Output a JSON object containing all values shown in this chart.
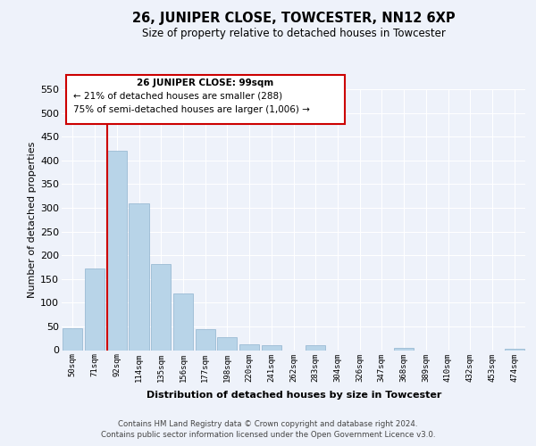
{
  "title": "26, JUNIPER CLOSE, TOWCESTER, NN12 6XP",
  "subtitle": "Size of property relative to detached houses in Towcester",
  "xlabel": "Distribution of detached houses by size in Towcester",
  "ylabel": "Number of detached properties",
  "categories": [
    "50sqm",
    "71sqm",
    "92sqm",
    "114sqm",
    "135sqm",
    "156sqm",
    "177sqm",
    "198sqm",
    "220sqm",
    "241sqm",
    "262sqm",
    "283sqm",
    "304sqm",
    "326sqm",
    "347sqm",
    "368sqm",
    "389sqm",
    "410sqm",
    "432sqm",
    "453sqm",
    "474sqm"
  ],
  "values": [
    47,
    172,
    420,
    310,
    182,
    120,
    45,
    27,
    13,
    10,
    0,
    11,
    0,
    0,
    0,
    4,
    0,
    0,
    0,
    0,
    3
  ],
  "bar_color": "#b8d4e8",
  "bar_edge_color": "#9bbbd4",
  "vline_x": 2,
  "vline_color": "#cc0000",
  "ylim": [
    0,
    550
  ],
  "yticks": [
    0,
    50,
    100,
    150,
    200,
    250,
    300,
    350,
    400,
    450,
    500,
    550
  ],
  "annotation_title": "26 JUNIPER CLOSE: 99sqm",
  "annotation_line1": "← 21% of detached houses are smaller (288)",
  "annotation_line2": "75% of semi-detached houses are larger (1,006) →",
  "footnote1": "Contains HM Land Registry data © Crown copyright and database right 2024.",
  "footnote2": "Contains public sector information licensed under the Open Government Licence v3.0.",
  "bg_color": "#eef2fa",
  "plot_bg_color": "#eef2fa",
  "grid_color": "#ffffff",
  "annotation_box_color": "#ffffff",
  "annotation_box_edge": "#cc0000"
}
